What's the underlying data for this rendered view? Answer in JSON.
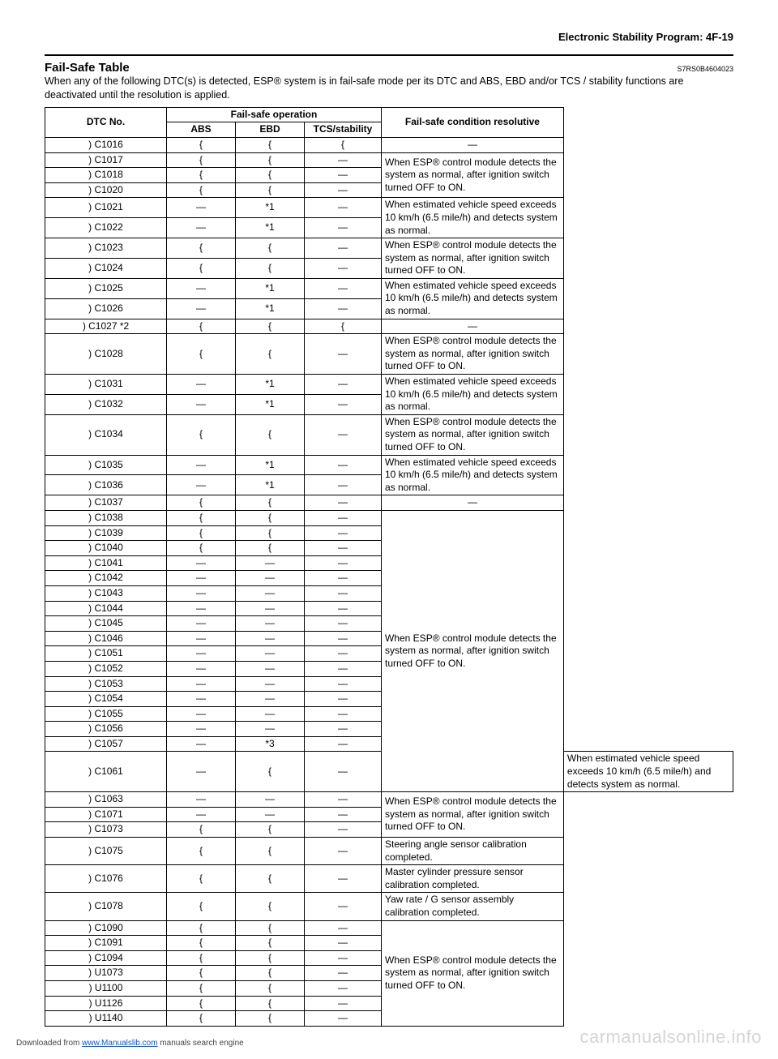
{
  "header": {
    "breadcrumb": "Electronic Stability Program:    4F-19"
  },
  "section": {
    "title": "Fail-Safe Table",
    "doc_code": "S7RS0B4604023",
    "intro": "When any of the following DTC(s) is detected, ESP® system is in fail-safe mode per its DTC and ABS, EBD and/or TCS / stability functions are deactivated until the resolution is applied."
  },
  "table": {
    "headers": {
      "dtc": "DTC No.",
      "fs_op": "Fail-safe operation",
      "abs": "ABS",
      "ebd": "EBD",
      "tcs": "TCS/stability",
      "res": "Fail-safe condition resolutive"
    },
    "symbols": {
      "circle": "{",
      "dash": "—"
    },
    "res_texts": {
      "dash": "—",
      "esp_normal": "When ESP® control module detects the system as normal, after ignition switch turned OFF to ON.",
      "speed10": "When estimated vehicle speed exceeds 10 km/h (6.5 mile/h) and detects system as normal.",
      "steering": "Steering angle sensor calibration completed.",
      "master": "Master cylinder pressure sensor calibration completed.",
      "yaw": "Yaw rate / G sensor assembly calibration completed."
    },
    "rows": [
      {
        "dtc": ") C1016",
        "abs": "{",
        "ebd": "{",
        "tcs": "{",
        "res": "dash",
        "rspan": 1
      },
      {
        "dtc": ") C1017",
        "abs": "{",
        "ebd": "{",
        "tcs": "—",
        "res": "esp_normal",
        "rspan": 3
      },
      {
        "dtc": ") C1018",
        "abs": "{",
        "ebd": "{",
        "tcs": "—"
      },
      {
        "dtc": ") C1020",
        "abs": "{",
        "ebd": "{",
        "tcs": "—"
      },
      {
        "dtc": ") C1021",
        "abs": "—",
        "ebd": "*1",
        "tcs": "—",
        "res": "speed10",
        "rspan": 2
      },
      {
        "dtc": ") C1022",
        "abs": "—",
        "ebd": "*1",
        "tcs": "—"
      },
      {
        "dtc": ") C1023",
        "abs": "{",
        "ebd": "{",
        "tcs": "—",
        "res": "esp_normal",
        "rspan": 2
      },
      {
        "dtc": ") C1024",
        "abs": "{",
        "ebd": "{",
        "tcs": "—"
      },
      {
        "dtc": ") C1025",
        "abs": "—",
        "ebd": "*1",
        "tcs": "—",
        "res": "speed10",
        "rspan": 2
      },
      {
        "dtc": ") C1026",
        "abs": "—",
        "ebd": "*1",
        "tcs": "—"
      },
      {
        "dtc": ") C1027 *2",
        "abs": "{",
        "ebd": "{",
        "tcs": "{",
        "res": "dash",
        "rspan": 1
      },
      {
        "dtc": ") C1028",
        "abs": "{",
        "ebd": "{",
        "tcs": "—",
        "res": "esp_normal",
        "rspan": 1
      },
      {
        "dtc": ") C1031",
        "abs": "—",
        "ebd": "*1",
        "tcs": "—",
        "res": "speed10",
        "rspan": 2
      },
      {
        "dtc": ") C1032",
        "abs": "—",
        "ebd": "*1",
        "tcs": "—"
      },
      {
        "dtc": ") C1034",
        "abs": "{",
        "ebd": "{",
        "tcs": "—",
        "res": "esp_normal",
        "rspan": 1
      },
      {
        "dtc": ") C1035",
        "abs": "—",
        "ebd": "*1",
        "tcs": "—",
        "res": "speed10",
        "rspan": 2
      },
      {
        "dtc": ") C1036",
        "abs": "—",
        "ebd": "*1",
        "tcs": "—"
      },
      {
        "dtc": ") C1037",
        "abs": "{",
        "ebd": "{",
        "tcs": "—",
        "res": "dash",
        "rspan": 1
      },
      {
        "dtc": ") C1038",
        "abs": "{",
        "ebd": "{",
        "tcs": "—",
        "res": "esp_normal",
        "rspan": 17
      },
      {
        "dtc": ") C1039",
        "abs": "{",
        "ebd": "{",
        "tcs": "—"
      },
      {
        "dtc": ") C1040",
        "abs": "{",
        "ebd": "{",
        "tcs": "—"
      },
      {
        "dtc": ") C1041",
        "abs": "—",
        "ebd": "—",
        "tcs": "—"
      },
      {
        "dtc": ") C1042",
        "abs": "—",
        "ebd": "—",
        "tcs": "—"
      },
      {
        "dtc": ") C1043",
        "abs": "—",
        "ebd": "—",
        "tcs": "—"
      },
      {
        "dtc": ") C1044",
        "abs": "—",
        "ebd": "—",
        "tcs": "—"
      },
      {
        "dtc": ") C1045",
        "abs": "—",
        "ebd": "—",
        "tcs": "—"
      },
      {
        "dtc": ") C1046",
        "abs": "—",
        "ebd": "—",
        "tcs": "—"
      },
      {
        "dtc": ") C1051",
        "abs": "—",
        "ebd": "—",
        "tcs": "—"
      },
      {
        "dtc": ") C1052",
        "abs": "—",
        "ebd": "—",
        "tcs": "—"
      },
      {
        "dtc": ") C1053",
        "abs": "—",
        "ebd": "—",
        "tcs": "—"
      },
      {
        "dtc": ") C1054",
        "abs": "—",
        "ebd": "—",
        "tcs": "—"
      },
      {
        "dtc": ") C1055",
        "abs": "—",
        "ebd": "—",
        "tcs": "—"
      },
      {
        "dtc": ") C1056",
        "abs": "—",
        "ebd": "—",
        "tcs": "—"
      },
      {
        "dtc": ") C1057",
        "abs": "—",
        "ebd": "*3",
        "tcs": "—"
      },
      {
        "dtc": ") C1061",
        "abs": "—",
        "ebd": "{",
        "tcs": "—",
        "res": "speed10",
        "rspan": 1
      },
      {
        "dtc": ") C1063",
        "abs": "—",
        "ebd": "—",
        "tcs": "—",
        "res": "esp_normal",
        "rspan": 3
      },
      {
        "dtc": ") C1071",
        "abs": "—",
        "ebd": "—",
        "tcs": "—"
      },
      {
        "dtc": ") C1073",
        "abs": "{",
        "ebd": "{",
        "tcs": "—"
      },
      {
        "dtc": ") C1075",
        "abs": "{",
        "ebd": "{",
        "tcs": "—",
        "res": "steering",
        "rspan": 1
      },
      {
        "dtc": ") C1076",
        "abs": "{",
        "ebd": "{",
        "tcs": "—",
        "res": "master",
        "rspan": 1
      },
      {
        "dtc": ") C1078",
        "abs": "{",
        "ebd": "{",
        "tcs": "—",
        "res": "yaw",
        "rspan": 1
      },
      {
        "dtc": ") C1090",
        "abs": "{",
        "ebd": "{",
        "tcs": "—",
        "res": "esp_normal",
        "rspan": 7
      },
      {
        "dtc": ") C1091",
        "abs": "{",
        "ebd": "{",
        "tcs": "—"
      },
      {
        "dtc": ") C1094",
        "abs": "{",
        "ebd": "{",
        "tcs": "—"
      },
      {
        "dtc": ") U1073",
        "abs": "{",
        "ebd": "{",
        "tcs": "—"
      },
      {
        "dtc": ") U1100",
        "abs": "{",
        "ebd": "{",
        "tcs": "—"
      },
      {
        "dtc": ") U1126",
        "abs": "{",
        "ebd": "{",
        "tcs": "—"
      },
      {
        "dtc": ") U1140",
        "abs": "{",
        "ebd": "{",
        "tcs": "—"
      }
    ]
  },
  "footer": {
    "prefix": "Downloaded from ",
    "link": "www.Manualslib.com",
    "suffix": " manuals search engine"
  },
  "watermark": "carmanualsonline.info"
}
